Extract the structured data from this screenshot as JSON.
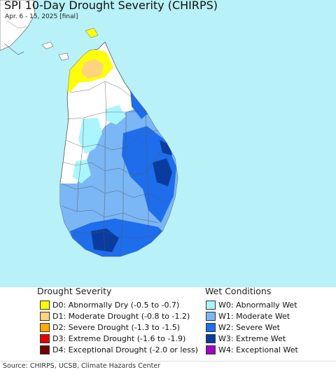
{
  "header": {
    "title": "SPI 10-Day Drought Severity (CHIRPS)",
    "subtitle": "Apr. 6 - 15, 2025 [final]"
  },
  "colors": {
    "water": "#b8f1f7",
    "land_neutral": "#ffffff",
    "D0": "#ffff00",
    "D1": "#fcd37f",
    "D2": "#ffaa00",
    "D3": "#e60000",
    "D4": "#730000",
    "W0": "#aaf5ff",
    "W1": "#7bb6f5",
    "W2": "#1e6eeb",
    "W3": "#0a3ca0",
    "W4": "#a000c8"
  },
  "legend": {
    "drought_title": "Drought Severity",
    "wet_title": "Wet Conditions",
    "drought_items": [
      {
        "code": "D0",
        "label": "D0: Abnormally Dry (-0.5 to -0.7)",
        "color": "#ffff00"
      },
      {
        "code": "D1",
        "label": "D1: Moderate Drought (-0.8 to -1.2)",
        "color": "#fcd37f"
      },
      {
        "code": "D2",
        "label": "D2: Severe Drought (-1.3 to -1.5)",
        "color": "#ffaa00"
      },
      {
        "code": "D3",
        "label": "D3: Extreme Drought (-1.6 to -1.9)",
        "color": "#e60000"
      },
      {
        "code": "D4",
        "label": "D4: Exceptional Drought (-2.0 or less)",
        "color": "#730000"
      }
    ],
    "wet_items": [
      {
        "code": "W0",
        "label": "W0: Abnormally Wet",
        "color": "#aaf5ff"
      },
      {
        "code": "W1",
        "label": "W1: Moderate Wet",
        "color": "#7bb6f5"
      },
      {
        "code": "W2",
        "label": "W2: Severe Wet",
        "color": "#1e6eeb"
      },
      {
        "code": "W3",
        "label": "W3: Extreme Wet",
        "color": "#0a3ca0"
      },
      {
        "code": "W4",
        "label": "W4: Exceptional Wet",
        "color": "#a000c8"
      }
    ]
  },
  "footer": {
    "source": "Source: CHIRPS, UCSB, Climate Hazards Center"
  }
}
